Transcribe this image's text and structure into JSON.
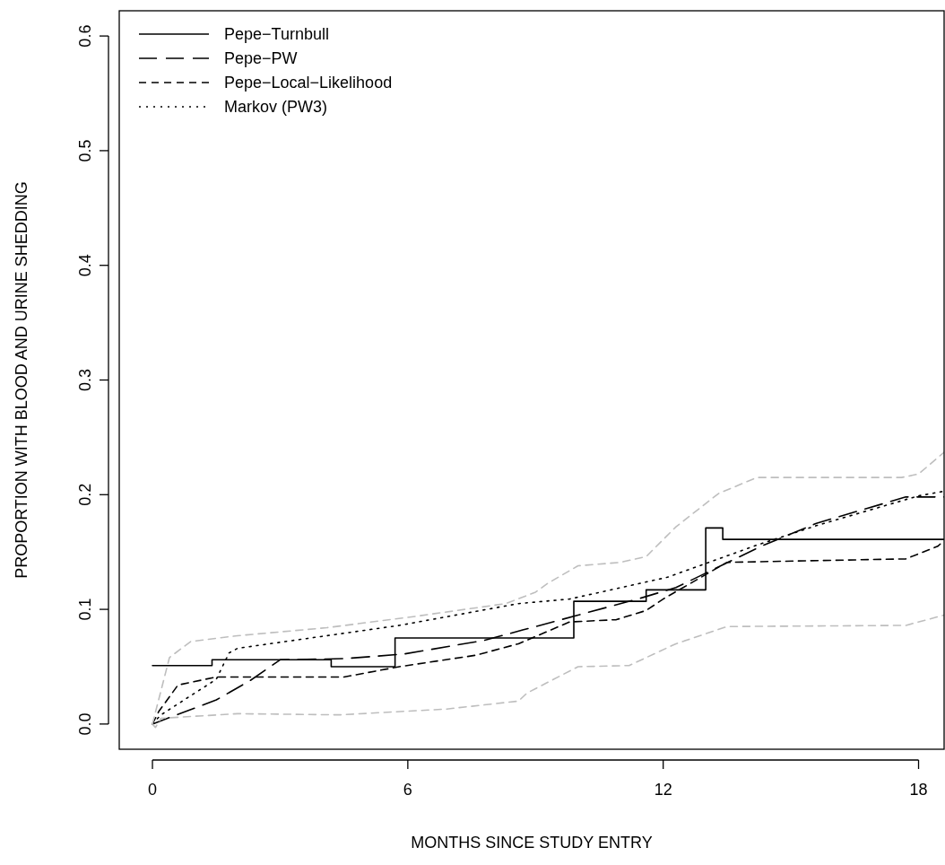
{
  "chart_data": {
    "type": "line",
    "xlabel": "MONTHS SINCE STUDY ENTRY",
    "ylabel": "PROPORTION WITH BLOOD AND URINE SHEDDING",
    "xlim": [
      -0.78,
      18.6
    ],
    "ylim": [
      -0.022,
      0.622
    ],
    "xticks": [
      0,
      6,
      12,
      18
    ],
    "yticks": [
      {
        "value": 0,
        "label": "0.0"
      },
      {
        "value": 0.1,
        "label": "0.1"
      },
      {
        "value": 0.2,
        "label": "0.2"
      },
      {
        "value": 0.3,
        "label": "0.3"
      },
      {
        "value": 0.4,
        "label": "0.4"
      },
      {
        "value": 0.5,
        "label": "0.5"
      },
      {
        "value": 0.6,
        "label": "0.6"
      }
    ],
    "legend": "top left",
    "marker": "none",
    "grid": false,
    "series": [
      {
        "name": "Pepe−Turnbull",
        "type": "step",
        "color": "#000000",
        "line_style": "solid",
        "x": [
          0,
          1.4,
          4.2,
          5.7,
          9.9,
          11.6,
          13.0,
          13.4,
          18.6
        ],
        "values": [
          0.051,
          0.056,
          0.05,
          0.075,
          0.107,
          0.117,
          0.171,
          0.161,
          0.161
        ]
      },
      {
        "name": "Pepe−PW",
        "color": "#000000",
        "line_style": "longdash",
        "x": [
          0,
          1.5,
          2.3,
          3.0,
          4.5,
          5.9,
          7.8,
          8.7,
          10,
          11.4,
          12.3,
          14.3,
          15.6,
          17.7,
          18.6
        ],
        "values": [
          0,
          0.021,
          0.038,
          0.056,
          0.057,
          0.061,
          0.073,
          0.082,
          0.095,
          0.109,
          0.119,
          0.155,
          0.175,
          0.198,
          0.198
        ]
      },
      {
        "name": "Pepe−Local−Likelihood",
        "color": "#000000",
        "line_style": "dashed",
        "x": [
          0,
          0.15,
          0.6,
          1.5,
          2.5,
          4.5,
          5.8,
          7.6,
          8.6,
          9.8,
          10.9,
          11.6,
          12,
          13.5,
          17.7,
          18.45,
          18.6
        ],
        "values": [
          0,
          0.011,
          0.034,
          0.041,
          0.041,
          0.041,
          0.05,
          0.06,
          0.07,
          0.089,
          0.091,
          0.099,
          0.109,
          0.141,
          0.144,
          0.155,
          0.16
        ]
      },
      {
        "name": "Markov (PW3)",
        "color": "#000000",
        "line_style": "dotted",
        "x": [
          0,
          0.2,
          1.5,
          1.8,
          2,
          5.8,
          8.6,
          9.8,
          12.1,
          14.2,
          15.6,
          18,
          18.6
        ],
        "values": [
          0,
          0.008,
          0.039,
          0.062,
          0.066,
          0.086,
          0.105,
          0.109,
          0.128,
          0.156,
          0.173,
          0.199,
          0.203
        ]
      },
      {
        "color": "#bebebe",
        "line_style": "dashed",
        "x": [
          0,
          0.4,
          0.9,
          2,
          4.1,
          6.2,
          8.3,
          9,
          9.3,
          10,
          11,
          11.6,
          12.3,
          13.3,
          14.2,
          17.6,
          18,
          18.6
        ],
        "values": [
          0,
          0.058,
          0.072,
          0.077,
          0.084,
          0.094,
          0.105,
          0.115,
          0.123,
          0.138,
          0.141,
          0.146,
          0.172,
          0.201,
          0.215,
          0.215,
          0.218,
          0.237
        ]
      },
      {
        "color": "#bebebe",
        "line_style": "dashed",
        "x": [
          0,
          0.07,
          0.2,
          2,
          4.4,
          6.9,
          8.6,
          8.8,
          10,
          11.2,
          12.3,
          13.5,
          17.7,
          18.6
        ],
        "values": [
          0,
          -0.003,
          0.005,
          0.009,
          0.008,
          0.013,
          0.02,
          0.027,
          0.05,
          0.051,
          0.07,
          0.085,
          0.086,
          0.095
        ]
      }
    ]
  }
}
